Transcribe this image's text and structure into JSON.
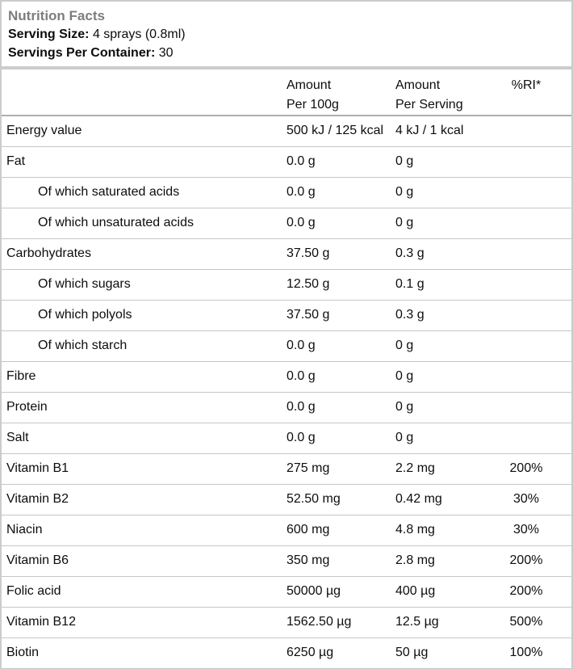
{
  "header": {
    "title": "Nutrition Facts",
    "serving_size_label": "Serving Size:",
    "serving_size_value": "4 sprays (0.8ml)",
    "servings_per_container_label": "Servings Per Container:",
    "servings_per_container_value": "30"
  },
  "table": {
    "columns": {
      "amount_per_100g_line1": "Amount",
      "amount_per_100g_line2": "Per 100g",
      "amount_per_serving_line1": "Amount",
      "amount_per_serving_line2": "Per Serving",
      "ri_header": "%RI*"
    },
    "rows": [
      {
        "label": "Energy value",
        "indent": false,
        "amount_per_100g": "500 kJ / 125 kcal",
        "amount_per_serving": "4 kJ / 1 kcal",
        "ri_percent": ""
      },
      {
        "label": "Fat",
        "indent": false,
        "amount_per_100g": "0.0 g",
        "amount_per_serving": "0 g",
        "ri_percent": ""
      },
      {
        "label": "Of which saturated acids",
        "indent": true,
        "amount_per_100g": "0.0 g",
        "amount_per_serving": "0 g",
        "ri_percent": ""
      },
      {
        "label": "Of which unsaturated acids",
        "indent": true,
        "amount_per_100g": "0.0 g",
        "amount_per_serving": "0 g",
        "ri_percent": ""
      },
      {
        "label": "Carbohydrates",
        "indent": false,
        "amount_per_100g": "37.50 g",
        "amount_per_serving": "0.3 g",
        "ri_percent": ""
      },
      {
        "label": "Of which sugars",
        "indent": true,
        "amount_per_100g": "12.50 g",
        "amount_per_serving": "0.1 g",
        "ri_percent": ""
      },
      {
        "label": "Of which polyols",
        "indent": true,
        "amount_per_100g": "37.50 g",
        "amount_per_serving": "0.3 g",
        "ri_percent": ""
      },
      {
        "label": "Of which starch",
        "indent": true,
        "amount_per_100g": "0.0 g",
        "amount_per_serving": "0 g",
        "ri_percent": ""
      },
      {
        "label": "Fibre",
        "indent": false,
        "amount_per_100g": "0.0 g",
        "amount_per_serving": "0 g",
        "ri_percent": ""
      },
      {
        "label": "Protein",
        "indent": false,
        "amount_per_100g": "0.0 g",
        "amount_per_serving": "0 g",
        "ri_percent": ""
      },
      {
        "label": "Salt",
        "indent": false,
        "amount_per_100g": "0.0 g",
        "amount_per_serving": "0 g",
        "ri_percent": ""
      },
      {
        "label": "Vitamin B1",
        "indent": false,
        "amount_per_100g": "275 mg",
        "amount_per_serving": "2.2 mg",
        "ri_percent": "200%"
      },
      {
        "label": "Vitamin B2",
        "indent": false,
        "amount_per_100g": "52.50 mg",
        "amount_per_serving": "0.42 mg",
        "ri_percent": "30%"
      },
      {
        "label": "Niacin",
        "indent": false,
        "amount_per_100g": "600 mg",
        "amount_per_serving": "4.8 mg",
        "ri_percent": "30%"
      },
      {
        "label": "Vitamin B6",
        "indent": false,
        "amount_per_100g": "350 mg",
        "amount_per_serving": "2.8 mg",
        "ri_percent": "200%"
      },
      {
        "label": "Folic acid",
        "indent": false,
        "amount_per_100g": "50000 µg",
        "amount_per_serving": "400 µg",
        "ri_percent": "200%"
      },
      {
        "label": "Vitamin B12",
        "indent": false,
        "amount_per_100g": "1562.50 µg",
        "amount_per_serving": "12.5 µg",
        "ri_percent": "500%"
      },
      {
        "label": "Biotin",
        "indent": false,
        "amount_per_100g": "6250 µg",
        "amount_per_serving": "50 µg",
        "ri_percent": "100%"
      }
    ]
  },
  "colors": {
    "title_gray": "#7d7d7d",
    "box_border": "#cccccc",
    "header_rule": "#aeaeae",
    "row_rule": "#c6c6c6",
    "text": "#0d0d0d"
  }
}
